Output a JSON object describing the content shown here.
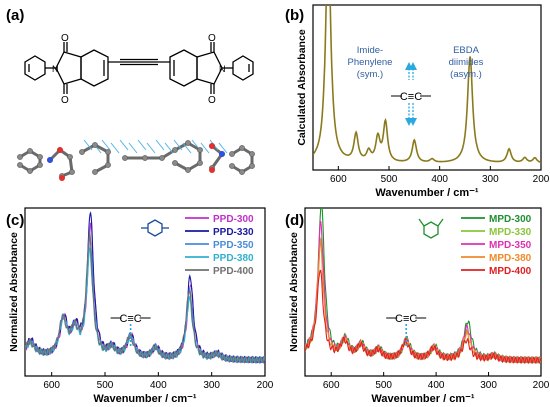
{
  "panels": {
    "a": {
      "label": "(a)"
    },
    "b": {
      "label": "(b)"
    },
    "c": {
      "label": "(c)"
    },
    "d": {
      "label": "(d)"
    }
  },
  "colors": {
    "b_line": "#8a7a1e",
    "annotation": "#2e5fa0",
    "arrow": "#29a9e0",
    "stick": "#6a6a6a",
    "oxygen": "#e03030",
    "nitrogen": "#3050e0",
    "vector": "#4fb4e8"
  },
  "chart_data": [
    {
      "panel": "b",
      "type": "line",
      "xlabel": "Wavenumber / cm⁻¹",
      "ylabel": "Calculated Absorbance",
      "xlim": [
        650,
        200
      ],
      "xticks": [
        600,
        500,
        400,
        300,
        200
      ],
      "y_ticks_shown": false,
      "annotations": [
        {
          "lines": [
            "Imide-",
            "Phenylene",
            "(sym.)"
          ],
          "x": 575
        },
        {
          "lines": [
            "EBDA",
            "diimides",
            "(asym.)"
          ],
          "x": 345
        },
        {
          "lines": [
            "C≡C"
          ],
          "x": 450
        }
      ],
      "series": [
        {
          "color": "#8a7a1e",
          "baseline": 0.02,
          "peaks": [
            {
              "x": 620,
              "h": 1.35
            },
            {
              "x": 565,
              "h": 0.16
            },
            {
              "x": 540,
              "h": 0.06
            },
            {
              "x": 522,
              "h": 0.14
            },
            {
              "x": 507,
              "h": 0.23
            },
            {
              "x": 450,
              "h": 0.13
            },
            {
              "x": 415,
              "h": 0.02
            },
            {
              "x": 340,
              "h": 0.62
            },
            {
              "x": 263,
              "h": 0.08
            },
            {
              "x": 232,
              "h": 0.03
            },
            {
              "x": 212,
              "h": 0.03
            }
          ]
        }
      ]
    },
    {
      "panel": "c",
      "type": "line",
      "xlabel": "Wavenumber / cm⁻¹",
      "ylabel": "Normalized Absorbance",
      "xlim": [
        650,
        200
      ],
      "xticks": [
        600,
        500,
        400,
        300,
        200
      ],
      "y_ticks_shown": false,
      "annotations": [
        {
          "lines": [
            "C≡C"
          ],
          "x": 452
        }
      ],
      "series": [
        {
          "name": "PPD-300",
          "color": "#c030c8"
        },
        {
          "name": "PPD-330",
          "color": "#1a1aa0"
        },
        {
          "name": "PPD-350",
          "color": "#4a8cd8"
        },
        {
          "name": "PPD-380",
          "color": "#30b0d0"
        },
        {
          "name": "PPD-400",
          "color": "#707070"
        }
      ],
      "peaks": [
        {
          "x": 640,
          "h": 0.08
        },
        {
          "x": 578,
          "h": 0.27
        },
        {
          "x": 556,
          "h": 0.18
        },
        {
          "x": 528,
          "h": 0.95
        },
        {
          "x": 487,
          "h": 0.07
        },
        {
          "x": 452,
          "h": 0.16
        },
        {
          "x": 405,
          "h": 0.08
        },
        {
          "x": 341,
          "h": 0.55
        },
        {
          "x": 290,
          "h": 0.04
        }
      ],
      "scales": [
        1.0,
        1.1,
        0.9,
        0.8,
        0.92
      ]
    },
    {
      "panel": "d",
      "type": "line",
      "xlabel": "Wavenumber / cm⁻¹",
      "ylabel": "Normalized Absorbance",
      "xlim": [
        650,
        200
      ],
      "xticks": [
        600,
        500,
        400,
        300,
        200
      ],
      "y_ticks_shown": false,
      "annotations": [
        {
          "lines": [
            "C≡C"
          ],
          "x": 457
        }
      ],
      "series": [
        {
          "name": "MPD-300",
          "color": "#1f8f2f"
        },
        {
          "name": "MPD-330",
          "color": "#8cc43c"
        },
        {
          "name": "MPD-350",
          "color": "#e030b0"
        },
        {
          "name": "MPD-380",
          "color": "#f08a2a"
        },
        {
          "name": "MPD-400",
          "color": "#e02020"
        }
      ],
      "peaks": [
        {
          "x": 620,
          "h": 1.0
        },
        {
          "x": 574,
          "h": 0.13
        },
        {
          "x": 543,
          "h": 0.1
        },
        {
          "x": 510,
          "h": 0.07
        },
        {
          "x": 457,
          "h": 0.14
        },
        {
          "x": 404,
          "h": 0.09
        },
        {
          "x": 341,
          "h": 0.19
        },
        {
          "x": 290,
          "h": 0.03
        }
      ],
      "scales": [
        1.1,
        0.85,
        0.95,
        0.8,
        0.62
      ]
    }
  ]
}
